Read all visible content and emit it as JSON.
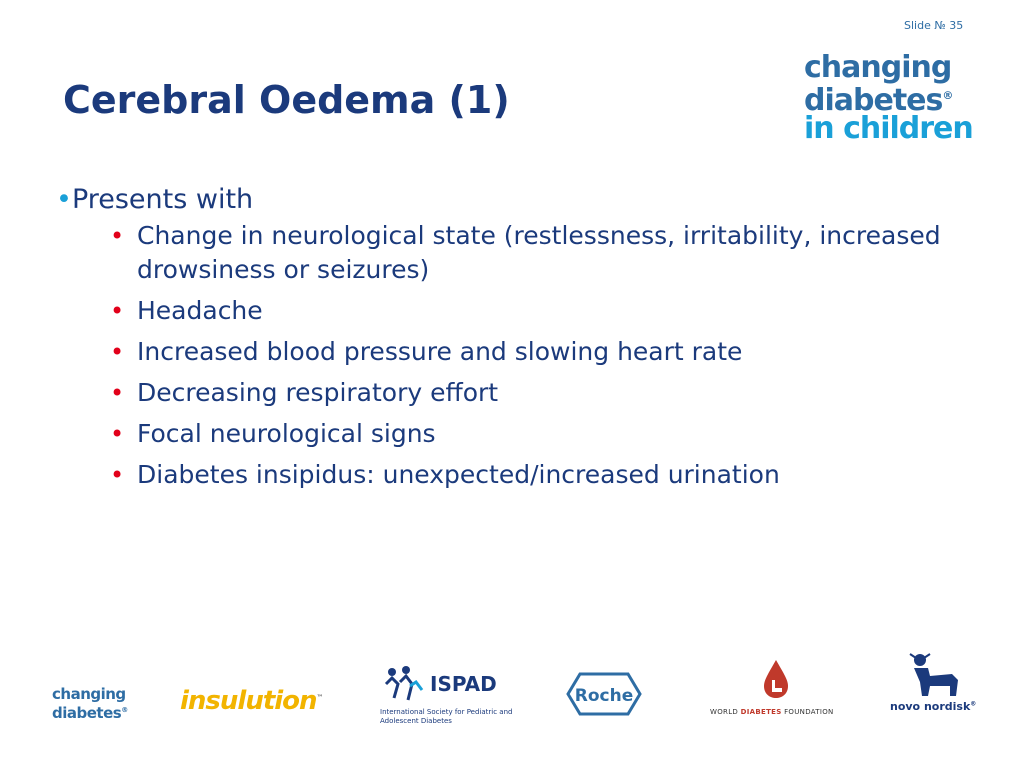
{
  "slide_number": "Slide № 35",
  "title": "Cerebral Oedema (1)",
  "brand_logo": {
    "line1": "changing",
    "line2": "diabetes",
    "line3": "in children",
    "registered": "®"
  },
  "content": {
    "bullet_symbol": "•",
    "heading": "Presents with",
    "items": [
      "Change in neurological state (restlessness, irritability, increased drowsiness or seizures)",
      "Headache",
      "Increased blood pressure and slowing heart rate",
      "Decreasing respiratory effort",
      "Focal neurological signs",
      "Diabetes insipidus: unexpected/increased urination"
    ],
    "item_bullet": "•"
  },
  "footer_logos": {
    "changing_diabetes": {
      "line1": "changing",
      "line2": "diabetes",
      "registered": "®"
    },
    "insulution": {
      "text": "insulution",
      "tm": "™"
    },
    "ispad": {
      "name": "ISPAD",
      "subtitle": "International Society for Pediatric and Adolescent Diabetes"
    },
    "roche": {
      "text": "Roche"
    },
    "wdf": {
      "pre": "WORLD ",
      "highlight": "DIABETES",
      "post": " FOUNDATION"
    },
    "novo_nordisk": {
      "text": "novo nordisk",
      "registered": "®"
    }
  },
  "colors": {
    "title": "#1b3a7c",
    "accent_blue": "#2e6da4",
    "light_blue": "#1aa0d8",
    "bullet_red": "#e2001a"
  }
}
